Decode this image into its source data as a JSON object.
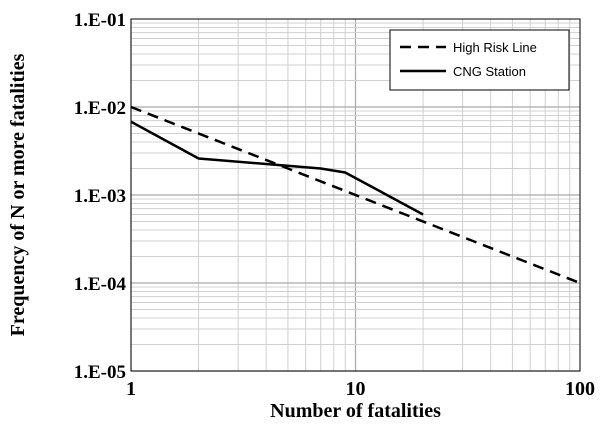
{
  "chart_data": {
    "type": "line",
    "title": "",
    "xlabel": "Number of fatalities",
    "ylabel": "Frequency of N or more fatalities",
    "x_scale": "log",
    "y_scale": "log",
    "xlim": [
      1,
      100
    ],
    "ylim": [
      1e-05,
      0.1
    ],
    "x_ticks": [
      {
        "value": 1,
        "label": "1"
      },
      {
        "value": 10,
        "label": "10"
      },
      {
        "value": 100,
        "label": "100"
      }
    ],
    "y_ticks": [
      {
        "value": 0.1,
        "label": "1.E-01"
      },
      {
        "value": 0.01,
        "label": "1.E-02"
      },
      {
        "value": 0.001,
        "label": "1.E-03"
      },
      {
        "value": 0.0001,
        "label": "1.E-04"
      },
      {
        "value": 1e-05,
        "label": "1.E-05"
      }
    ],
    "grid": true,
    "legend_position": "top-right",
    "series": [
      {
        "name": "High Risk Line",
        "style": "dashed",
        "color": "#000000",
        "points": [
          [
            1,
            0.01
          ],
          [
            100,
            0.0001
          ]
        ]
      },
      {
        "name": "CNG Station",
        "style": "solid",
        "color": "#000000",
        "points": [
          [
            1,
            0.0068
          ],
          [
            2,
            0.0026
          ],
          [
            7,
            0.002
          ],
          [
            9,
            0.0018
          ],
          [
            20,
            0.0006
          ]
        ]
      }
    ]
  }
}
